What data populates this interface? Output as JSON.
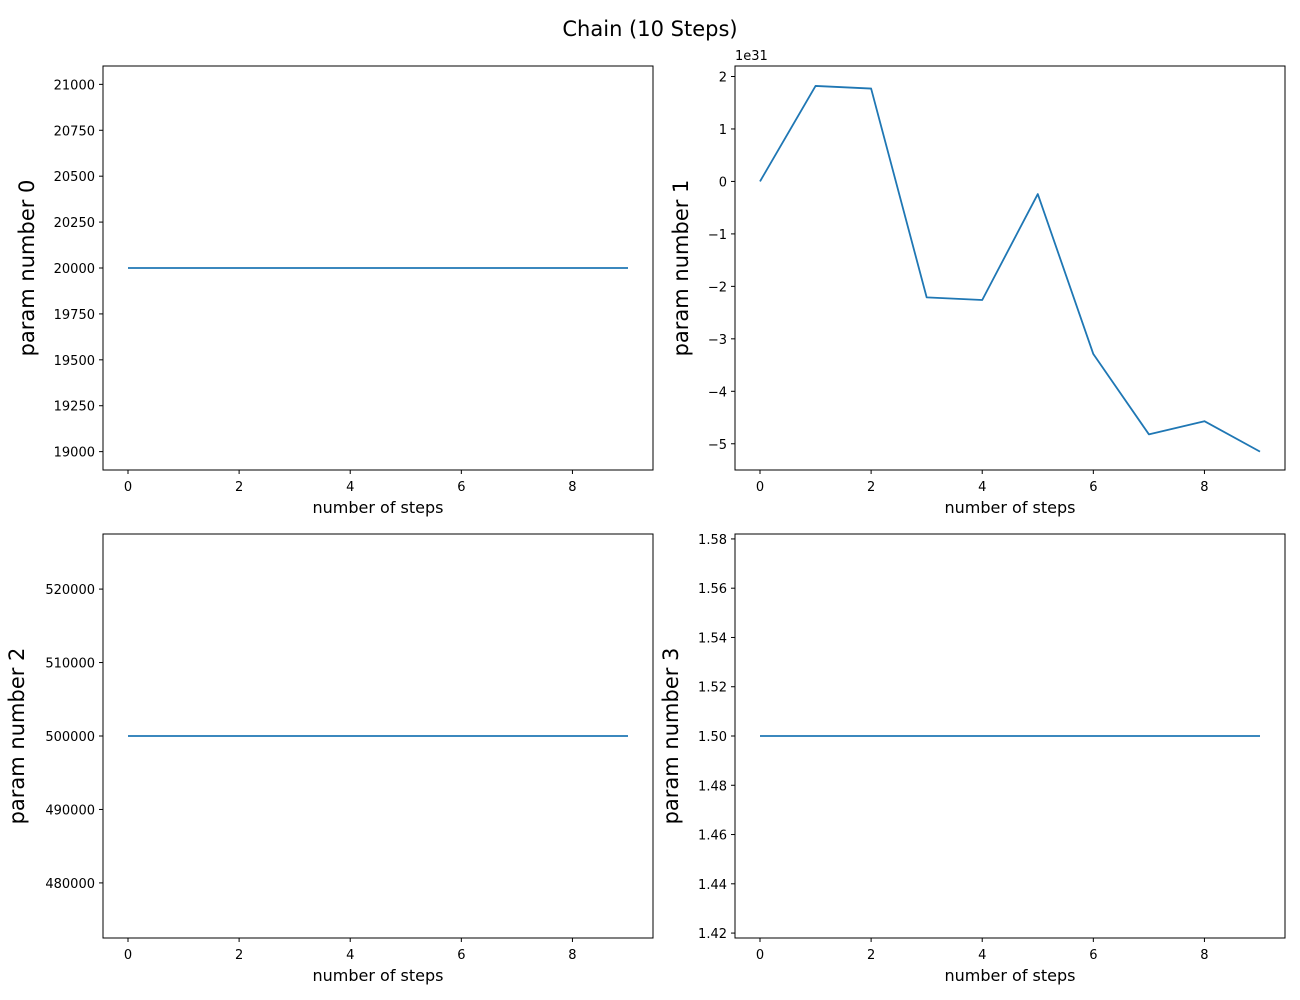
{
  "figure": {
    "title": "Chain (10 Steps)"
  },
  "colors": {
    "line": "#1f77b4",
    "axes": "#000000",
    "background": "#ffffff"
  },
  "chart_data": [
    {
      "type": "line",
      "title": "",
      "xlabel": "number of steps",
      "ylabel": "param number 0",
      "x": [
        0,
        1,
        2,
        3,
        4,
        5,
        6,
        7,
        8,
        9
      ],
      "series": [
        {
          "values": [
            20000,
            20000,
            20000,
            20000,
            20000,
            20000,
            20000,
            20000,
            20000,
            20000
          ]
        }
      ],
      "xlim": [
        -0.45,
        9.45
      ],
      "ylim": [
        18900,
        21100
      ],
      "xticks": [
        0,
        2,
        4,
        6,
        8
      ],
      "yticks": [
        19000,
        19250,
        19500,
        19750,
        20000,
        20250,
        20500,
        20750,
        21000
      ],
      "offset_text": "",
      "grid": false
    },
    {
      "type": "line",
      "title": "",
      "xlabel": "number of steps",
      "ylabel": "param number 1",
      "x": [
        0,
        1,
        2,
        3,
        4,
        5,
        6,
        7,
        8,
        9
      ],
      "series": [
        {
          "values": [
            0,
            1.82e+31,
            1.77e+31,
            -2.21e+31,
            -2.26e+31,
            -2.4e+30,
            -3.29e+31,
            -4.82e+31,
            -4.57e+31,
            -5.15e+31
          ]
        }
      ],
      "xlim": [
        -0.45,
        9.45
      ],
      "ylim": [
        -5.5e+31,
        2.2e+31
      ],
      "xticks": [
        0,
        2,
        4,
        6,
        8
      ],
      "yticks": [
        -5e+31,
        -4e+31,
        -3e+31,
        -2e+31,
        -1e+31,
        0,
        1e+31,
        2e+31
      ],
      "ytick_labels": [
        "−5",
        "−4",
        "−3",
        "−2",
        "−1",
        "0",
        "1",
        "2"
      ],
      "offset_text": "1e31",
      "grid": false
    },
    {
      "type": "line",
      "title": "",
      "xlabel": "number of steps",
      "ylabel": "param number 2",
      "x": [
        0,
        1,
        2,
        3,
        4,
        5,
        6,
        7,
        8,
        9
      ],
      "series": [
        {
          "values": [
            500000,
            500000,
            500000,
            500000,
            500000,
            500000,
            500000,
            500000,
            500000,
            500000
          ]
        }
      ],
      "xlim": [
        -0.45,
        9.45
      ],
      "ylim": [
        472500,
        527500
      ],
      "xticks": [
        0,
        2,
        4,
        6,
        8
      ],
      "yticks": [
        480000,
        490000,
        500000,
        510000,
        520000
      ],
      "offset_text": "",
      "grid": false
    },
    {
      "type": "line",
      "title": "",
      "xlabel": "number of steps",
      "ylabel": "param number 3",
      "x": [
        0,
        1,
        2,
        3,
        4,
        5,
        6,
        7,
        8,
        9
      ],
      "series": [
        {
          "values": [
            1.5,
            1.5,
            1.5,
            1.5,
            1.5,
            1.5,
            1.5,
            1.5,
            1.5,
            1.5
          ]
        }
      ],
      "xlim": [
        -0.45,
        9.45
      ],
      "ylim": [
        1.418,
        1.582
      ],
      "xticks": [
        0,
        2,
        4,
        6,
        8
      ],
      "yticks": [
        1.42,
        1.44,
        1.46,
        1.48,
        1.5,
        1.52,
        1.54,
        1.56,
        1.58
      ],
      "ytick_labels": [
        "1.42",
        "1.44",
        "1.46",
        "1.48",
        "1.50",
        "1.52",
        "1.54",
        "1.56",
        "1.58"
      ],
      "offset_text": "",
      "grid": false
    }
  ]
}
